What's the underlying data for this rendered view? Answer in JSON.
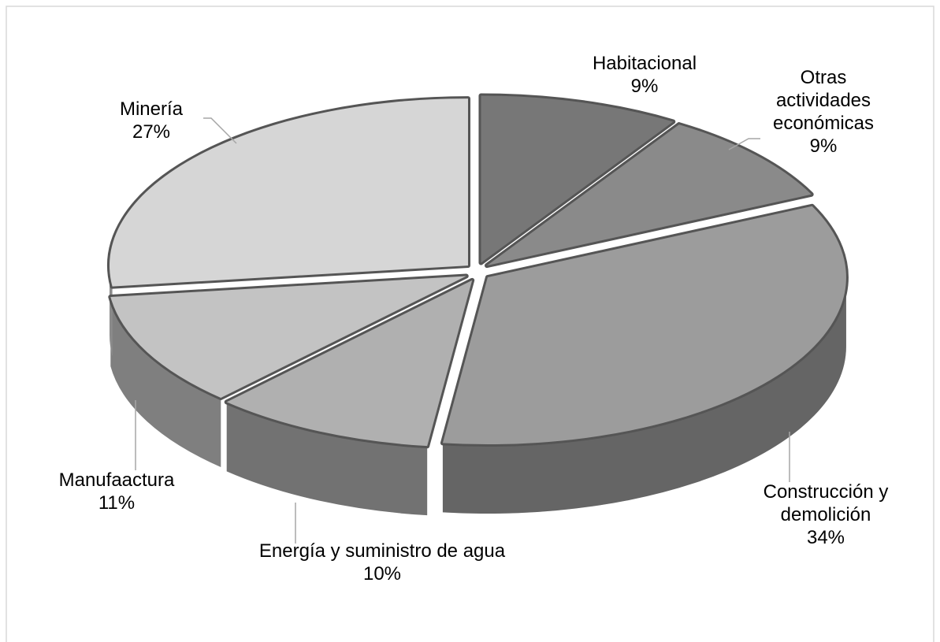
{
  "chart_data": {
    "type": "pie",
    "categories": [
      "Habitacional",
      "Otras actividades económicas",
      "Construcción y demolición",
      "Energía y suministro de agua",
      "Manufaactura",
      "Minería"
    ],
    "values": [
      9,
      9,
      34,
      10,
      11,
      27
    ],
    "value_labels": [
      "9%",
      "9%",
      "34%",
      "10%",
      "11%",
      "27%"
    ],
    "colors": [
      "#777777",
      "#8a8a8a",
      "#9c9c9c",
      "#b0b0b0",
      "#c3c3c3",
      "#d6d6d6"
    ]
  }
}
